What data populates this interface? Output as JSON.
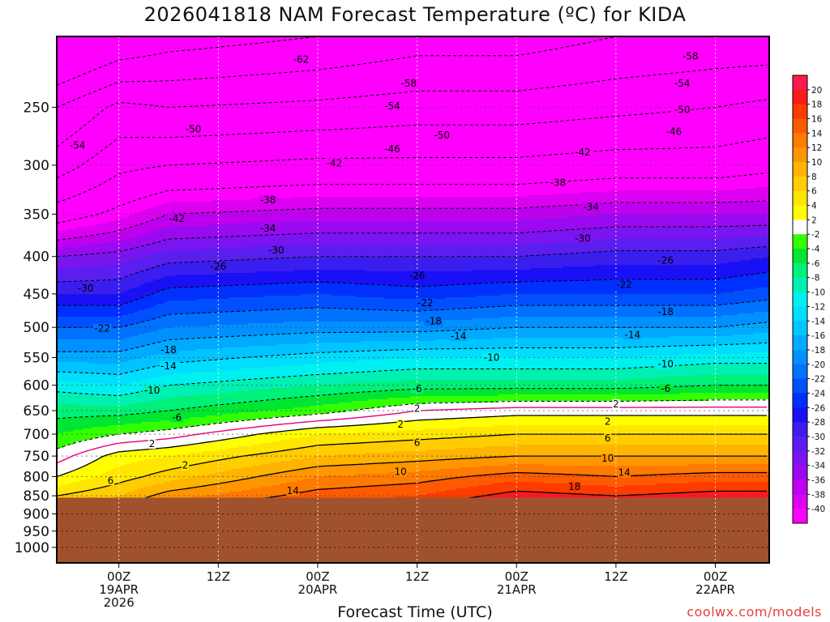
{
  "title": "2026041818 NAM Forecast Temperature (ºC) for KIDA",
  "credit": "coolwx.com/models",
  "colors": {
    "ground": "#a0522d",
    "freezing_line": "#e6007e"
  },
  "chart_data": {
    "type": "contour",
    "xlabel": "Forecast Time (UTC)",
    "ylabel": "",
    "y_axis": {
      "unit": "hPa",
      "scale": "log-pressure",
      "range": [
        200,
        1050
      ],
      "ticks": [
        250,
        300,
        350,
        400,
        450,
        500,
        550,
        600,
        650,
        700,
        750,
        800,
        850,
        900,
        950,
        1000
      ]
    },
    "x_axis": {
      "range_hours": [
        -1.5,
        84.5
      ],
      "ticks": [
        {
          "hour": 6,
          "label": "00Z",
          "date": "19APR",
          "year": "2026"
        },
        {
          "hour": 18,
          "label": "12Z",
          "date": "",
          "year": ""
        },
        {
          "hour": 30,
          "label": "00Z",
          "date": "20APR",
          "year": ""
        },
        {
          "hour": 42,
          "label": "12Z",
          "date": "",
          "year": ""
        },
        {
          "hour": 54,
          "label": "00Z",
          "date": "21APR",
          "year": ""
        },
        {
          "hour": 66,
          "label": "12Z",
          "date": "",
          "year": ""
        },
        {
          "hour": 78,
          "label": "00Z",
          "date": "22APR",
          "year": ""
        }
      ]
    },
    "ground_level_hPa": 855,
    "temperature_profiles": [
      {
        "hour": -1.5,
        "levels": [
          [
            200,
            -70
          ],
          [
            250,
            -58
          ],
          [
            300,
            -52
          ],
          [
            350,
            -44
          ],
          [
            400,
            -34
          ],
          [
            450,
            -28
          ],
          [
            500,
            -22
          ],
          [
            550,
            -17
          ],
          [
            600,
            -11
          ],
          [
            650,
            -7
          ],
          [
            700,
            -4
          ],
          [
            750,
            -1
          ],
          [
            800,
            2
          ],
          [
            850,
            6
          ]
        ]
      },
      {
        "hour": 6,
        "levels": [
          [
            200,
            -66
          ],
          [
            250,
            -53
          ],
          [
            300,
            -47
          ],
          [
            350,
            -41
          ],
          [
            400,
            -33
          ],
          [
            450,
            -28
          ],
          [
            500,
            -22
          ],
          [
            550,
            -17
          ],
          [
            600,
            -12
          ],
          [
            650,
            -7
          ],
          [
            700,
            -2
          ],
          [
            750,
            3
          ],
          [
            800,
            5
          ],
          [
            850,
            8
          ]
        ]
      },
      {
        "hour": 12,
        "levels": [
          [
            200,
            -64
          ],
          [
            250,
            -54
          ],
          [
            300,
            -46
          ],
          [
            350,
            -38
          ],
          [
            400,
            -31
          ],
          [
            450,
            -25
          ],
          [
            500,
            -20
          ],
          [
            550,
            -15
          ],
          [
            600,
            -10
          ],
          [
            650,
            -6
          ],
          [
            700,
            -1
          ],
          [
            750,
            4
          ],
          [
            800,
            7
          ],
          [
            850,
            11
          ]
        ]
      },
      {
        "hour": 30,
        "levels": [
          [
            200,
            -62
          ],
          [
            250,
            -53
          ],
          [
            300,
            -45
          ],
          [
            350,
            -37
          ],
          [
            400,
            -30
          ],
          [
            450,
            -24
          ],
          [
            500,
            -19
          ],
          [
            550,
            -13
          ],
          [
            600,
            -8
          ],
          [
            650,
            -3
          ],
          [
            700,
            4
          ],
          [
            750,
            8
          ],
          [
            800,
            12
          ],
          [
            850,
            15
          ]
        ]
      },
      {
        "hour": 42,
        "levels": [
          [
            200,
            -60
          ],
          [
            250,
            -52
          ],
          [
            300,
            -45
          ],
          [
            350,
            -37
          ],
          [
            400,
            -30
          ],
          [
            450,
            -25
          ],
          [
            500,
            -19
          ],
          [
            550,
            -12
          ],
          [
            600,
            -7
          ],
          [
            650,
            0
          ],
          [
            700,
            5
          ],
          [
            750,
            9
          ],
          [
            800,
            13
          ],
          [
            850,
            16
          ]
        ]
      },
      {
        "hour": 54,
        "levels": [
          [
            200,
            -60
          ],
          [
            250,
            -52
          ],
          [
            300,
            -45
          ],
          [
            350,
            -37
          ],
          [
            400,
            -30
          ],
          [
            450,
            -24
          ],
          [
            500,
            -18
          ],
          [
            550,
            -12
          ],
          [
            600,
            -7
          ],
          [
            650,
            1
          ],
          [
            700,
            6
          ],
          [
            750,
            10
          ],
          [
            800,
            15
          ],
          [
            850,
            19
          ]
        ]
      },
      {
        "hour": 66,
        "levels": [
          [
            200,
            -58
          ],
          [
            250,
            -51
          ],
          [
            300,
            -44
          ],
          [
            350,
            -36
          ],
          [
            400,
            -29
          ],
          [
            450,
            -24
          ],
          [
            500,
            -18
          ],
          [
            550,
            -12
          ],
          [
            600,
            -7
          ],
          [
            650,
            1
          ],
          [
            700,
            6
          ],
          [
            750,
            10
          ],
          [
            800,
            14
          ],
          [
            850,
            18
          ]
        ]
      },
      {
        "hour": 78,
        "levels": [
          [
            200,
            -57
          ],
          [
            250,
            -50
          ],
          [
            300,
            -44
          ],
          [
            350,
            -36
          ],
          [
            400,
            -29
          ],
          [
            450,
            -24
          ],
          [
            500,
            -18
          ],
          [
            550,
            -11
          ],
          [
            600,
            -6
          ],
          [
            650,
            1
          ],
          [
            700,
            6
          ],
          [
            750,
            10
          ],
          [
            800,
            15
          ],
          [
            850,
            19
          ]
        ]
      },
      {
        "hour": 84.5,
        "levels": [
          [
            200,
            -57
          ],
          [
            250,
            -49
          ],
          [
            300,
            -43
          ],
          [
            350,
            -36
          ],
          [
            400,
            -28
          ],
          [
            450,
            -23
          ],
          [
            500,
            -17
          ],
          [
            550,
            -11
          ],
          [
            600,
            -6
          ],
          [
            650,
            1
          ],
          [
            700,
            6
          ],
          [
            750,
            10
          ],
          [
            800,
            15
          ],
          [
            850,
            19
          ]
        ]
      }
    ],
    "contour_labels": [
      {
        "text": "-62",
        "hour": 28,
        "hPa": 215
      },
      {
        "text": "-58",
        "hour": 41,
        "hPa": 232
      },
      {
        "text": "-58",
        "hour": 75,
        "hPa": 213
      },
      {
        "text": "-54",
        "hour": 39,
        "hPa": 249
      },
      {
        "text": "-54",
        "hour": 74,
        "hPa": 232
      },
      {
        "text": "-54",
        "hour": 1,
        "hPa": 282
      },
      {
        "text": "-50",
        "hour": 15,
        "hPa": 268
      },
      {
        "text": "-50",
        "hour": 45,
        "hPa": 273
      },
      {
        "text": "-50",
        "hour": 74,
        "hPa": 252
      },
      {
        "text": "-46",
        "hour": 39,
        "hPa": 285
      },
      {
        "text": "-46",
        "hour": 73,
        "hPa": 270
      },
      {
        "text": "-42",
        "hour": 13,
        "hPa": 355
      },
      {
        "text": "-42",
        "hour": 32,
        "hPa": 298
      },
      {
        "text": "-42",
        "hour": 62,
        "hPa": 288
      },
      {
        "text": "-38",
        "hour": 24,
        "hPa": 335
      },
      {
        "text": "-38",
        "hour": 59,
        "hPa": 317
      },
      {
        "text": "-34",
        "hour": 24,
        "hPa": 366
      },
      {
        "text": "-34",
        "hour": 63,
        "hPa": 342
      },
      {
        "text": "-30",
        "hour": 2,
        "hPa": 442
      },
      {
        "text": "-30",
        "hour": 25,
        "hPa": 392
      },
      {
        "text": "-30",
        "hour": 62,
        "hPa": 378
      },
      {
        "text": "-26",
        "hour": 18,
        "hPa": 413
      },
      {
        "text": "-26",
        "hour": 42,
        "hPa": 425
      },
      {
        "text": "-26",
        "hour": 72,
        "hPa": 405
      },
      {
        "text": "-22",
        "hour": 4,
        "hPa": 502
      },
      {
        "text": "-22",
        "hour": 43,
        "hPa": 463
      },
      {
        "text": "-22",
        "hour": 67,
        "hPa": 437
      },
      {
        "text": "-18",
        "hour": 12,
        "hPa": 537
      },
      {
        "text": "-18",
        "hour": 44,
        "hPa": 490
      },
      {
        "text": "-18",
        "hour": 72,
        "hPa": 476
      },
      {
        "text": "-14",
        "hour": 12,
        "hPa": 565
      },
      {
        "text": "-14",
        "hour": 47,
        "hPa": 514
      },
      {
        "text": "-14",
        "hour": 68,
        "hPa": 512
      },
      {
        "text": "-10",
        "hour": 10,
        "hPa": 610
      },
      {
        "text": "-10",
        "hour": 51,
        "hPa": 550
      },
      {
        "text": "-10",
        "hour": 72,
        "hPa": 561
      },
      {
        "text": "-6",
        "hour": 13,
        "hPa": 664
      },
      {
        "text": "-6",
        "hour": 42,
        "hPa": 607
      },
      {
        "text": "-6",
        "hour": 72,
        "hPa": 607
      },
      {
        "text": "2",
        "hour": 10,
        "hPa": 722
      },
      {
        "text": "2",
        "hour": 42,
        "hPa": 646
      },
      {
        "text": "2",
        "hour": 66,
        "hPa": 637
      },
      {
        "text": "2",
        "hour": 40,
        "hPa": 679
      },
      {
        "text": "2",
        "hour": 65,
        "hPa": 673
      },
      {
        "text": "2",
        "hour": 14,
        "hPa": 772
      },
      {
        "text": "6",
        "hour": 42,
        "hPa": 719
      },
      {
        "text": "6",
        "hour": 65,
        "hPa": 709
      },
      {
        "text": "6",
        "hour": 5,
        "hPa": 810
      },
      {
        "text": "10",
        "hour": 40,
        "hPa": 788
      },
      {
        "text": "10",
        "hour": 65,
        "hPa": 756
      },
      {
        "text": "14",
        "hour": 27,
        "hPa": 837
      },
      {
        "text": "14",
        "hour": 67,
        "hPa": 790
      },
      {
        "text": "18",
        "hour": 61,
        "hPa": 826
      }
    ],
    "colorbar": {
      "labels": [
        "20",
        "18",
        "16",
        "14",
        "12",
        "10",
        "8",
        "6",
        "4",
        "2",
        "-2",
        "-4",
        "-6",
        "-8",
        "-10",
        "-12",
        "-14",
        "-16",
        "-18",
        "-20",
        "-22",
        "-24",
        "-26",
        "-28",
        "-30",
        "-32",
        "-34",
        "-36",
        "-38",
        "-40"
      ],
      "bins": [
        {
          "lo": 20,
          "hi": 22,
          "color": "#ff1a4d"
        },
        {
          "lo": 18,
          "hi": 20,
          "color": "#ff1a1a"
        },
        {
          "lo": 16,
          "hi": 18,
          "color": "#ff3b00"
        },
        {
          "lo": 14,
          "hi": 16,
          "color": "#ff5a00"
        },
        {
          "lo": 12,
          "hi": 14,
          "color": "#ff7a00"
        },
        {
          "lo": 10,
          "hi": 12,
          "color": "#ff9600"
        },
        {
          "lo": 8,
          "hi": 10,
          "color": "#ffb400"
        },
        {
          "lo": 6,
          "hi": 8,
          "color": "#ffcd00"
        },
        {
          "lo": 4,
          "hi": 6,
          "color": "#ffe600"
        },
        {
          "lo": 2,
          "hi": 4,
          "color": "#ffff00"
        },
        {
          "lo": -2,
          "hi": 2,
          "color": "#ffffff"
        },
        {
          "lo": -4,
          "hi": -2,
          "color": "#33ff00"
        },
        {
          "lo": -6,
          "hi": -4,
          "color": "#00e633"
        },
        {
          "lo": -8,
          "hi": -6,
          "color": "#00f07a"
        },
        {
          "lo": -10,
          "hi": -8,
          "color": "#00f0b4"
        },
        {
          "lo": -12,
          "hi": -10,
          "color": "#00f0f0"
        },
        {
          "lo": -14,
          "hi": -12,
          "color": "#00ddff"
        },
        {
          "lo": -16,
          "hi": -14,
          "color": "#00c4ff"
        },
        {
          "lo": -18,
          "hi": -16,
          "color": "#00aaff"
        },
        {
          "lo": -20,
          "hi": -18,
          "color": "#0090ff"
        },
        {
          "lo": -22,
          "hi": -20,
          "color": "#0072ff"
        },
        {
          "lo": -24,
          "hi": -22,
          "color": "#0050ff"
        },
        {
          "lo": -26,
          "hi": -24,
          "color": "#0030ff"
        },
        {
          "lo": -28,
          "hi": -26,
          "color": "#1a10f5"
        },
        {
          "lo": -30,
          "hi": -28,
          "color": "#3a1ef0"
        },
        {
          "lo": -32,
          "hi": -30,
          "color": "#5a1ef0"
        },
        {
          "lo": -34,
          "hi": -32,
          "color": "#7a14f0"
        },
        {
          "lo": -36,
          "hi": -34,
          "color": "#9a0af0"
        },
        {
          "lo": -38,
          "hi": -36,
          "color": "#bf00f0"
        },
        {
          "lo": -40,
          "hi": -38,
          "color": "#dc00f0"
        },
        {
          "lo": -90,
          "hi": -40,
          "color": "#ff00ff"
        }
      ]
    }
  }
}
